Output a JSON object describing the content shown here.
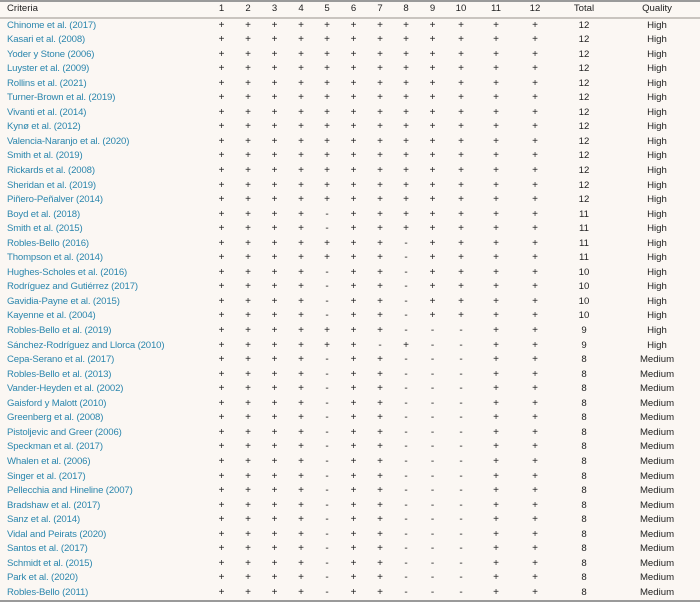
{
  "headers": [
    "Criteria",
    "1",
    "2",
    "3",
    "4",
    "5",
    "6",
    "7",
    "8",
    "9",
    "10",
    "11",
    "12",
    "Total",
    "Quality"
  ],
  "rows": [
    {
      "study": "Chinome et al. (2017)",
      "marks": "++++++++++++",
      "total": "12",
      "quality": "High"
    },
    {
      "study": "Kasari et al. (2008)",
      "marks": "++++++++++++",
      "total": "12",
      "quality": "High"
    },
    {
      "study": "Yoder y Stone (2006)",
      "marks": "++++++++++++",
      "total": "12",
      "quality": "High"
    },
    {
      "study": "Luyster et al. (2009)",
      "marks": "++++++++++++",
      "total": "12",
      "quality": "High"
    },
    {
      "study": "Rollins et al. (2021)",
      "marks": "++++++++++++",
      "total": "12",
      "quality": "High"
    },
    {
      "study": "Turner-Brown et al. (2019)",
      "marks": "++++++++++++",
      "total": "12",
      "quality": "High"
    },
    {
      "study": "Vivanti et al. (2014)",
      "marks": "++++++++++++",
      "total": "12",
      "quality": "High"
    },
    {
      "study": "Kynø et al. (2012)",
      "marks": "++++++++++++",
      "total": "12",
      "quality": "High"
    },
    {
      "study": "Valencia-Naranjo et al. (2020)",
      "marks": "++++++++++++",
      "total": "12",
      "quality": "High"
    },
    {
      "study": "Smith et al. (2019)",
      "marks": "++++++++++++",
      "total": "12",
      "quality": "High"
    },
    {
      "study": "Rickards et al. (2008)",
      "marks": "++++++++++++",
      "total": "12",
      "quality": "High"
    },
    {
      "study": "Sheridan et al. (2019)",
      "marks": "++++++++++++",
      "total": "12",
      "quality": "High"
    },
    {
      "study": "Piñero-Peñalver (2014)",
      "marks": "++++++++++++",
      "total": "12",
      "quality": "High"
    },
    {
      "study": "Boyd et al. (2018)",
      "marks": "++++-+++++++",
      "total": "11",
      "quality": "High"
    },
    {
      "study": "Smith et al. (2015)",
      "marks": "++++-+++++++",
      "total": "11",
      "quality": "High"
    },
    {
      "study": "Robles-Bello (2016)",
      "marks": "+++++++-++++",
      "total": "11",
      "quality": "High"
    },
    {
      "study": "Thompson et al. (2014)",
      "marks": "+++++++-++++",
      "total": "11",
      "quality": "High"
    },
    {
      "study": "Hughes-Scholes et al. (2016)",
      "marks": "++++-++-++++",
      "total": "10",
      "quality": "High"
    },
    {
      "study": "Rodríguez and Gutiérrez (2017)",
      "marks": "++++-++-++++",
      "total": "10",
      "quality": "High"
    },
    {
      "study": "Gavidia-Payne et al. (2015)",
      "marks": "++++-++-++++",
      "total": "10",
      "quality": "High"
    },
    {
      "study": "Kayenne et al. (2004)",
      "marks": "++++-++-++++",
      "total": "10",
      "quality": "High"
    },
    {
      "study": "Robles-Bello et al. (2019)",
      "marks": "+++++++---++",
      "total": "9",
      "quality": "High"
    },
    {
      "study": "Sánchez-Rodríguez and Llorca (2010)",
      "marks": "++++++-+--++",
      "total": "9",
      "quality": "High"
    },
    {
      "study": "Cepa-Serano et al. (2017)",
      "marks": "++++-++---++",
      "total": "8",
      "quality": "Medium"
    },
    {
      "study": "Robles-Bello et al. (2013)",
      "marks": "++++-++---++",
      "total": "8",
      "quality": "Medium"
    },
    {
      "study": "Vander-Heyden et al. (2002)",
      "marks": "++++-++---++",
      "total": "8",
      "quality": "Medium"
    },
    {
      "study": "Gaisford y Malott (2010)",
      "marks": "++++-++---++",
      "total": "8",
      "quality": "Medium"
    },
    {
      "study": "Greenberg et al. (2008)",
      "marks": "++++-++---++",
      "total": "8",
      "quality": "Medium"
    },
    {
      "study": "Pistoljevic and Greer (2006)",
      "marks": "++++-++---++",
      "total": "8",
      "quality": "Medium"
    },
    {
      "study": "Speckman et al. (2017)",
      "marks": "++++-++---++",
      "total": "8",
      "quality": "Medium"
    },
    {
      "study": "Whalen et al. (2006)",
      "marks": "++++-++---++",
      "total": "8",
      "quality": "Medium"
    },
    {
      "study": "Singer et al. (2017)",
      "marks": "++++-++---++",
      "total": "8",
      "quality": "Medium"
    },
    {
      "study": "Pellecchia and Hineline (2007)",
      "marks": "++++-++---++",
      "total": "8",
      "quality": "Medium"
    },
    {
      "study": "Bradshaw et al. (2017)",
      "marks": "++++-++---++",
      "total": "8",
      "quality": "Medium"
    },
    {
      "study": "Sanz et al. (2014)",
      "marks": "++++-++---++",
      "total": "8",
      "quality": "Medium"
    },
    {
      "study": "Vidal and Peirats (2020)",
      "marks": "++++-++---++",
      "total": "8",
      "quality": "Medium"
    },
    {
      "study": "Santos et al. (2017)",
      "marks": "++++-++---++",
      "total": "8",
      "quality": "Medium"
    },
    {
      "study": "Schmidt et al. (2015)",
      "marks": "++++-++---++",
      "total": "8",
      "quality": "Medium"
    },
    {
      "study": "Park et al. (2020)",
      "marks": "++++-++---++",
      "total": "8",
      "quality": "Medium"
    },
    {
      "study": "Robles-Bello (2011)",
      "marks": "++++-++---++",
      "total": "8",
      "quality": "Medium"
    }
  ],
  "colors": {
    "background": "#fbf7f3",
    "study_link": "#2b86ad",
    "text": "#222222"
  }
}
